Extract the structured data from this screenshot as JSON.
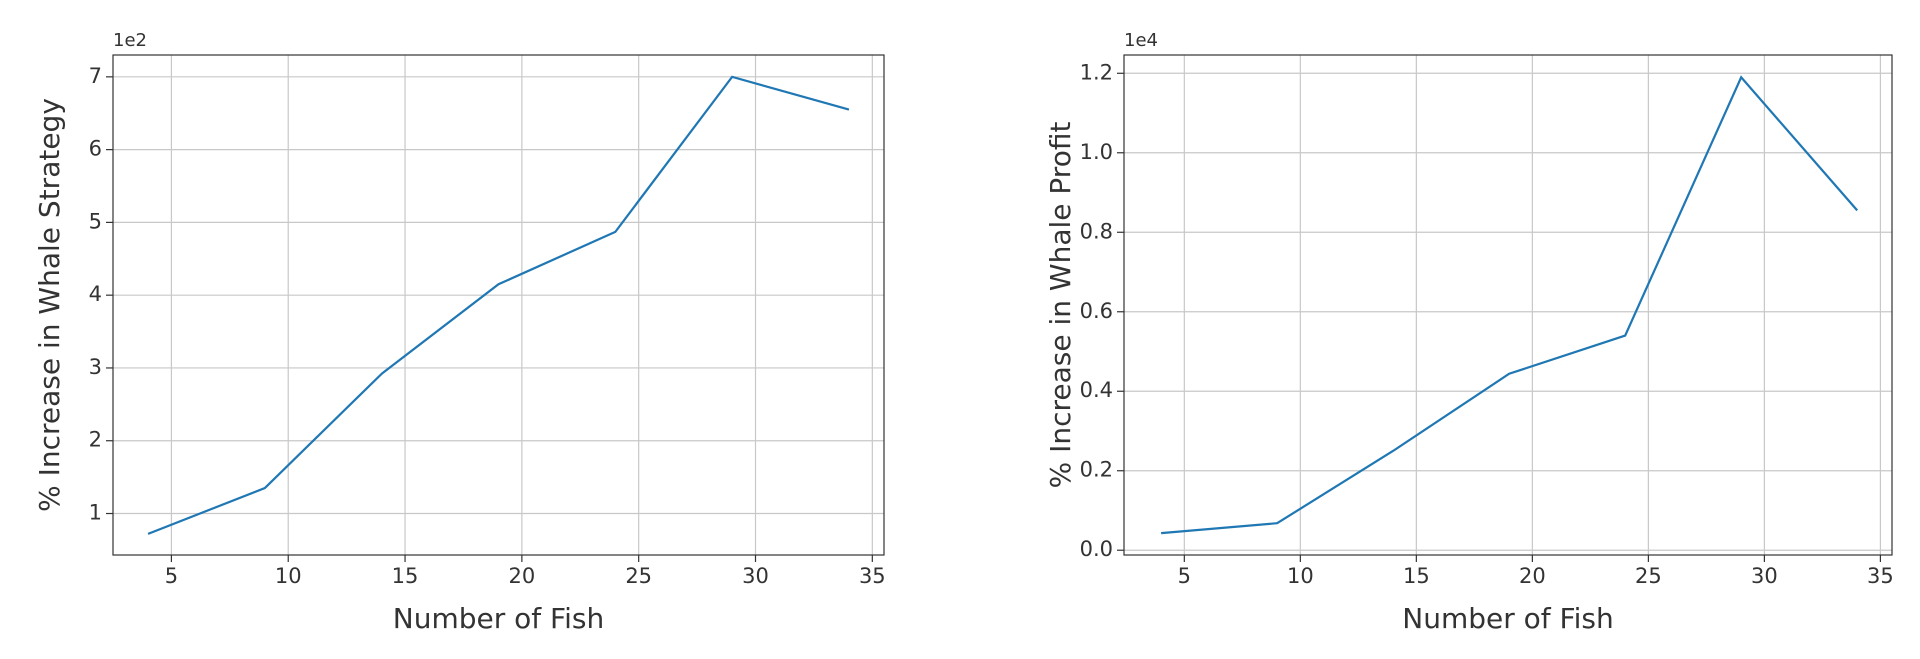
{
  "chart_data": [
    {
      "type": "line",
      "xlabel": "Number of Fish",
      "ylabel": "% Increase in Whale Strategy",
      "offset_label": "1e2",
      "x": [
        4,
        9,
        14,
        19,
        24,
        29,
        34
      ],
      "series": [
        {
          "color": "#1f77b4",
          "values": [
            0.72,
            1.35,
            2.92,
            4.15,
            4.87,
            7.0,
            6.55
          ]
        }
      ],
      "xlim": [
        2.5,
        35.5
      ],
      "xticks": [
        5,
        10,
        15,
        20,
        25,
        30,
        35
      ],
      "ylim": [
        0.43,
        7.3
      ],
      "yticks": [
        1,
        2,
        3,
        4,
        5,
        6,
        7
      ],
      "grid": true
    },
    {
      "type": "line",
      "xlabel": "Number of Fish",
      "ylabel": "% Increase in Whale Profit",
      "offset_label": "1e4",
      "x": [
        4,
        9,
        14,
        19,
        24,
        29,
        34
      ],
      "series": [
        {
          "color": "#1f77b4",
          "values": [
            0.043,
            0.068,
            0.25,
            0.444,
            0.54,
            1.19,
            0.855
          ]
        }
      ],
      "xlim": [
        2.4,
        35.5
      ],
      "xticks": [
        5,
        10,
        15,
        20,
        25,
        30,
        35
      ],
      "ylim": [
        -0.012,
        1.246
      ],
      "yticks": [
        {
          "value": 0,
          "label": "0.0"
        },
        {
          "value": 0.2,
          "label": "0.2"
        },
        {
          "value": 0.4,
          "label": "0.4"
        },
        {
          "value": 0.6,
          "label": "0.6"
        },
        {
          "value": 0.8,
          "label": "0.8"
        },
        {
          "value": 1,
          "label": "1.0"
        },
        {
          "value": 1.2,
          "label": "1.2"
        }
      ],
      "grid": true
    }
  ]
}
